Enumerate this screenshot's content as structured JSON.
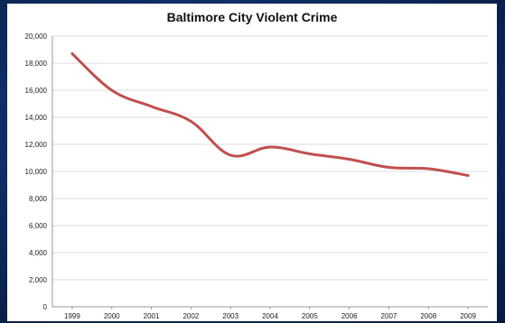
{
  "chart_data": {
    "type": "line",
    "title": "Baltimore City Violent Crime",
    "xlabel": "",
    "ylabel": "",
    "categories": [
      "1999",
      "2000",
      "2001",
      "2002",
      "2003",
      "2004",
      "2005",
      "2006",
      "2007",
      "2008",
      "2009"
    ],
    "series": [
      {
        "values": [
          18700,
          16000,
          14800,
          13700,
          11200,
          11800,
          11300,
          10900,
          10300,
          10200,
          9700
        ],
        "color": "#c0504d"
      }
    ],
    "ylim": [
      0,
      20000
    ],
    "yticks": [
      0,
      2000,
      4000,
      6000,
      8000,
      10000,
      12000,
      14000,
      16000,
      18000,
      20000
    ],
    "ytick_labels": [
      "0",
      "2,000",
      "4,000",
      "6,000",
      "8,000",
      "10,000",
      "12,000",
      "14,000",
      "16,000",
      "18,000",
      "20,000"
    ],
    "grid": true,
    "legend": "none"
  }
}
